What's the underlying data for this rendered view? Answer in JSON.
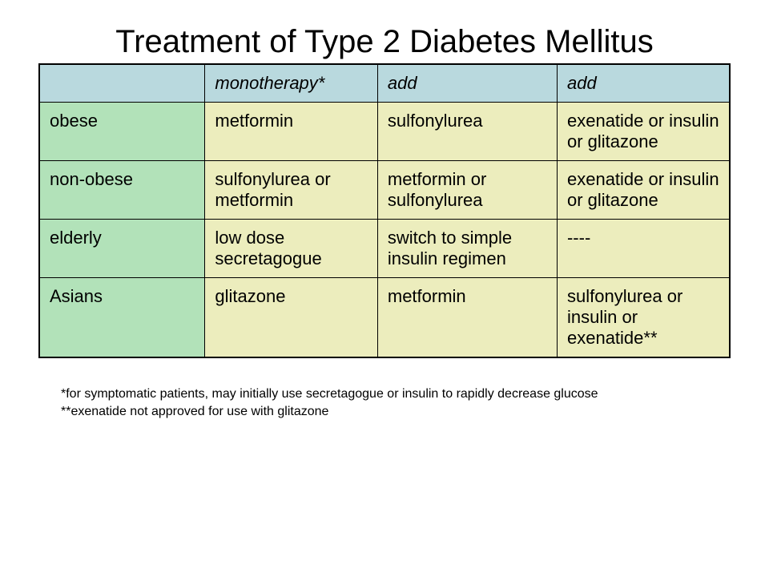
{
  "title": "Treatment of Type 2 Diabetes Mellitus",
  "colors": {
    "header_bg": "#b9d9de",
    "rowlabel_bg": "#b2e2b9",
    "cell_bg": "#ecedbd",
    "border": "#000000",
    "text": "#000000",
    "background": "#ffffff"
  },
  "table": {
    "columns": [
      "",
      "monotherapy*",
      "add",
      "add"
    ],
    "column_widths_pct": [
      24,
      25,
      26,
      25
    ],
    "header_font_style": "italic",
    "cell_fontsize": 22,
    "rows": [
      {
        "label": "obese",
        "cells": [
          "metformin",
          "sulfonylurea",
          "exenatide or insulin or glitazone"
        ]
      },
      {
        "label": "non-obese",
        "cells": [
          "sulfonylurea or metformin",
          "metformin or sulfonylurea",
          "exenatide or insulin or glitazone"
        ]
      },
      {
        "label": "elderly",
        "cells": [
          "low dose secretagogue",
          "switch to simple insulin regimen",
          "----"
        ]
      },
      {
        "label": "Asians",
        "cells": [
          "glitazone",
          "metformin",
          "sulfonylurea or insulin or exenatide**"
        ]
      }
    ]
  },
  "footnotes": [
    "*for symptomatic patients, may initially use secretagogue or insulin to rapidly decrease glucose",
    "**exenatide not approved for use with glitazone"
  ]
}
